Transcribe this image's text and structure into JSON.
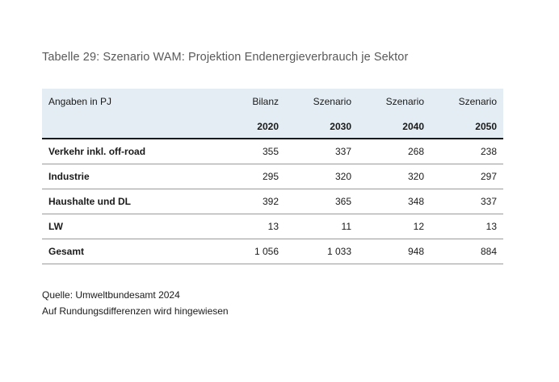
{
  "caption": "Tabelle 29: Szenario WAM: Projektion Endenergieverbrauch je Sektor",
  "table": {
    "unit_label": "Angaben in PJ",
    "columns": [
      {
        "type": "Bilanz",
        "year": "2020"
      },
      {
        "type": "Szenario",
        "year": "2030"
      },
      {
        "type": "Szenario",
        "year": "2040"
      },
      {
        "type": "Szenario",
        "year": "2050"
      }
    ],
    "rows": [
      {
        "label": "Verkehr inkl. off-road",
        "values": [
          "355",
          "337",
          "268",
          "238"
        ]
      },
      {
        "label": "Industrie",
        "values": [
          "295",
          "320",
          "320",
          "297"
        ]
      },
      {
        "label": "Haushalte und DL",
        "values": [
          "392",
          "365",
          "348",
          "337"
        ]
      },
      {
        "label": "LW",
        "values": [
          "13",
          "11",
          "12",
          "13"
        ]
      },
      {
        "label": "Gesamt",
        "values": [
          "1 056",
          "1 033",
          "948",
          "884"
        ]
      }
    ]
  },
  "notes": {
    "source": "Quelle: Umweltbundesamt 2024",
    "rounding": "Auf Rundungsdifferenzen wird hingewiesen"
  }
}
